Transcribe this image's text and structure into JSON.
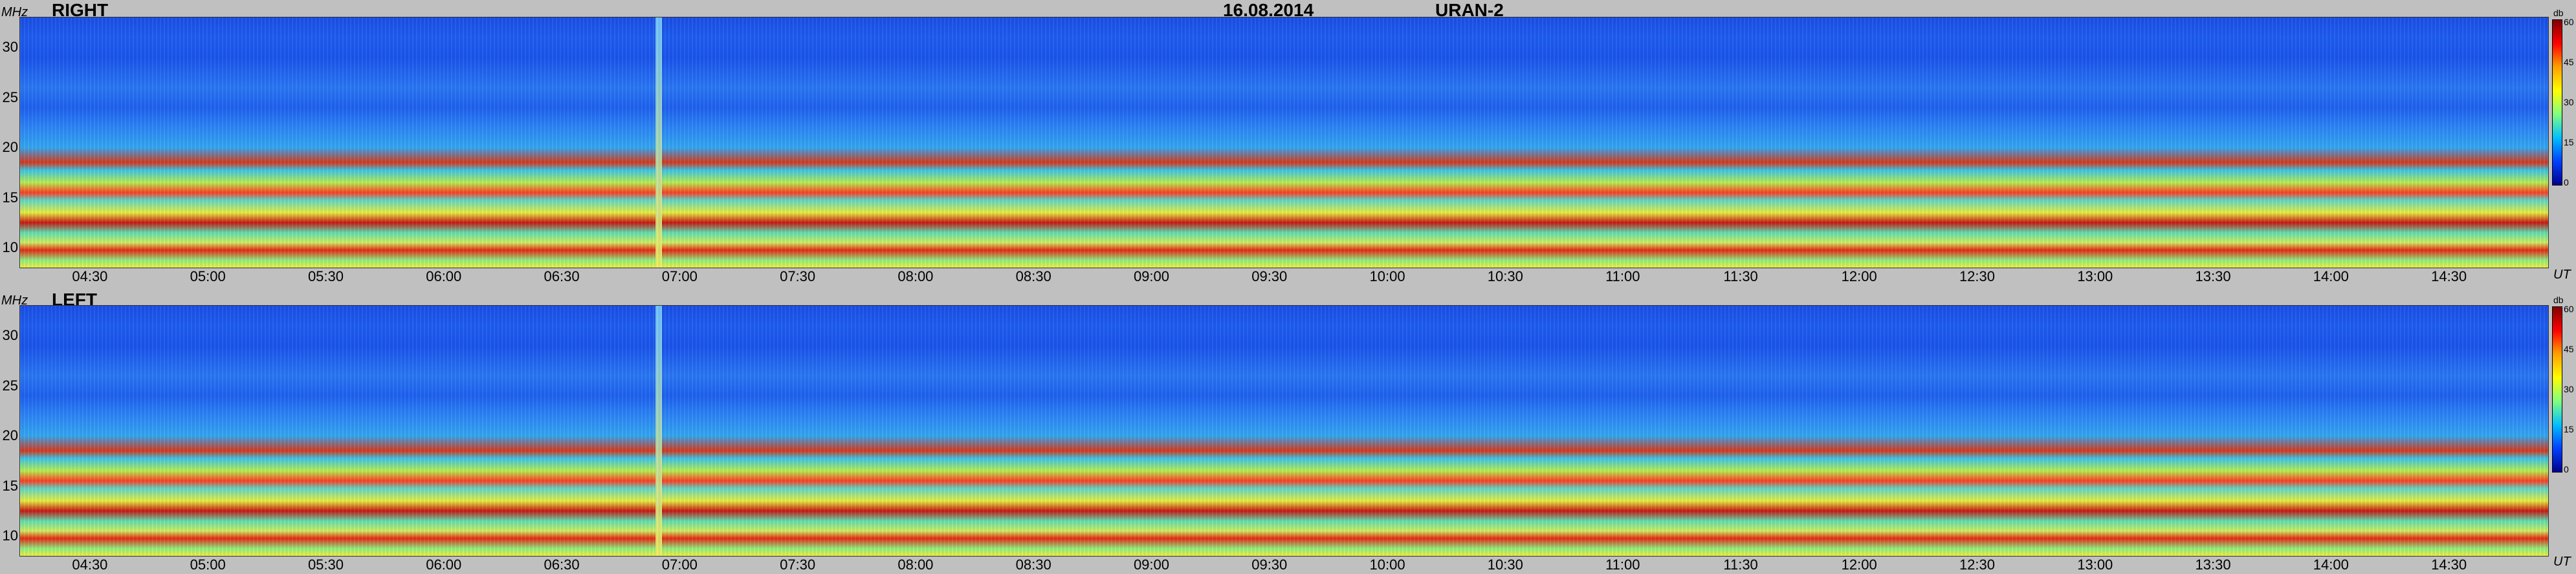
{
  "header": {
    "date": "16.08.2014",
    "instrument": "URAN-2"
  },
  "panels": [
    {
      "label": "RIGHT",
      "y_unit": "MHz",
      "x_unit": "UT",
      "colorbar_unit": "db",
      "colorbar_ticks": [
        "60",
        "45",
        "30",
        "15",
        "0"
      ]
    },
    {
      "label": "LEFT",
      "y_unit": "MHz",
      "x_unit": "UT",
      "colorbar_unit": "db",
      "colorbar_ticks": [
        "60",
        "45",
        "30",
        "15",
        "0"
      ]
    }
  ],
  "chart_data": [
    {
      "type": "heatmap",
      "title": "RIGHT",
      "xlabel": "UT",
      "ylabel": "MHz",
      "x_ticks": [
        "04:30",
        "05:00",
        "05:30",
        "06:00",
        "06:30",
        "07:00",
        "07:30",
        "08:00",
        "08:30",
        "09:00",
        "09:30",
        "10:00",
        "10:30",
        "11:00",
        "11:30",
        "12:00",
        "12:30",
        "13:00",
        "13:30",
        "14:00",
        "14:30"
      ],
      "y_ticks": [
        "10",
        "15",
        "20",
        "25",
        "30"
      ],
      "ylim": [
        8,
        33
      ],
      "colorbar": {
        "unit": "db",
        "range": [
          0,
          60
        ],
        "ticks": [
          0,
          15,
          30,
          45,
          60
        ]
      }
    },
    {
      "type": "heatmap",
      "title": "LEFT",
      "xlabel": "UT",
      "ylabel": "MHz",
      "x_ticks": [
        "04:30",
        "05:00",
        "05:30",
        "06:00",
        "06:30",
        "07:00",
        "07:30",
        "08:00",
        "08:30",
        "09:00",
        "09:30",
        "10:00",
        "10:30",
        "11:00",
        "11:30",
        "12:00",
        "12:30",
        "13:00",
        "13:30",
        "14:00",
        "14:30"
      ],
      "y_ticks": [
        "10",
        "15",
        "20",
        "25",
        "30"
      ],
      "ylim": [
        8,
        33
      ],
      "colorbar": {
        "unit": "db",
        "range": [
          0,
          60
        ],
        "ticks": [
          0,
          15,
          30,
          45,
          60
        ]
      }
    }
  ]
}
